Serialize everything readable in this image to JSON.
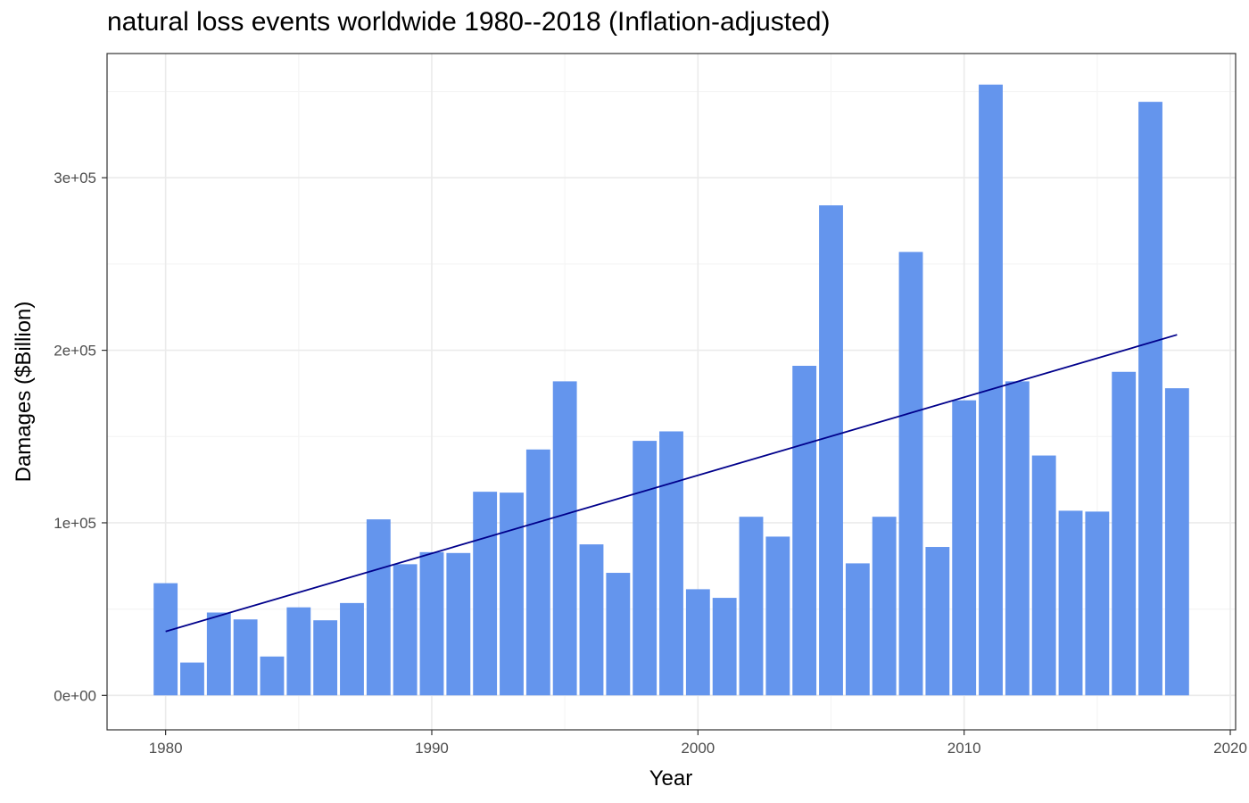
{
  "chart_data": {
    "type": "bar",
    "title": "natural loss events worldwide 1980--2018 (Inflation-adjusted)",
    "xlabel": "Year",
    "ylabel": "Damages ($Billion)",
    "x": [
      1980,
      1981,
      1982,
      1983,
      1984,
      1985,
      1986,
      1987,
      1988,
      1989,
      1990,
      1991,
      1992,
      1993,
      1994,
      1995,
      1996,
      1997,
      1998,
      1999,
      2000,
      2001,
      2002,
      2003,
      2004,
      2005,
      2006,
      2007,
      2008,
      2009,
      2010,
      2011,
      2012,
      2013,
      2014,
      2015,
      2016,
      2017,
      2018
    ],
    "values": [
      65000,
      19000,
      48000,
      44000,
      22500,
      51000,
      43500,
      53500,
      102000,
      76000,
      83000,
      82500,
      118000,
      117500,
      142500,
      182000,
      87500,
      71000,
      147500,
      153000,
      61500,
      56500,
      103500,
      92000,
      191000,
      284000,
      76500,
      103500,
      257000,
      86000,
      171000,
      354000,
      182000,
      139000,
      107000,
      106500,
      187500,
      344000,
      178000
    ],
    "trend": {
      "x": [
        1980,
        2018
      ],
      "y": [
        37000,
        209000
      ]
    },
    "xlim": [
      1977.8,
      2020.2
    ],
    "ylim": [
      -20000,
      372000
    ],
    "xticks": [
      1980,
      1990,
      2000,
      2010,
      2020
    ],
    "xtick_labels": [
      "1980",
      "1990",
      "2000",
      "2010",
      "2020"
    ],
    "yticks": [
      0,
      100000,
      200000,
      300000
    ],
    "ytick_labels": [
      "0e+00",
      "1e+05",
      "2e+05",
      "3e+05"
    ],
    "grid": true,
    "colors": {
      "bar": "#6495ED",
      "trend": "#00008B",
      "grid_major": "#ebebeb",
      "grid_minor": "#f5f5f5",
      "panel_border": "#333333"
    }
  }
}
